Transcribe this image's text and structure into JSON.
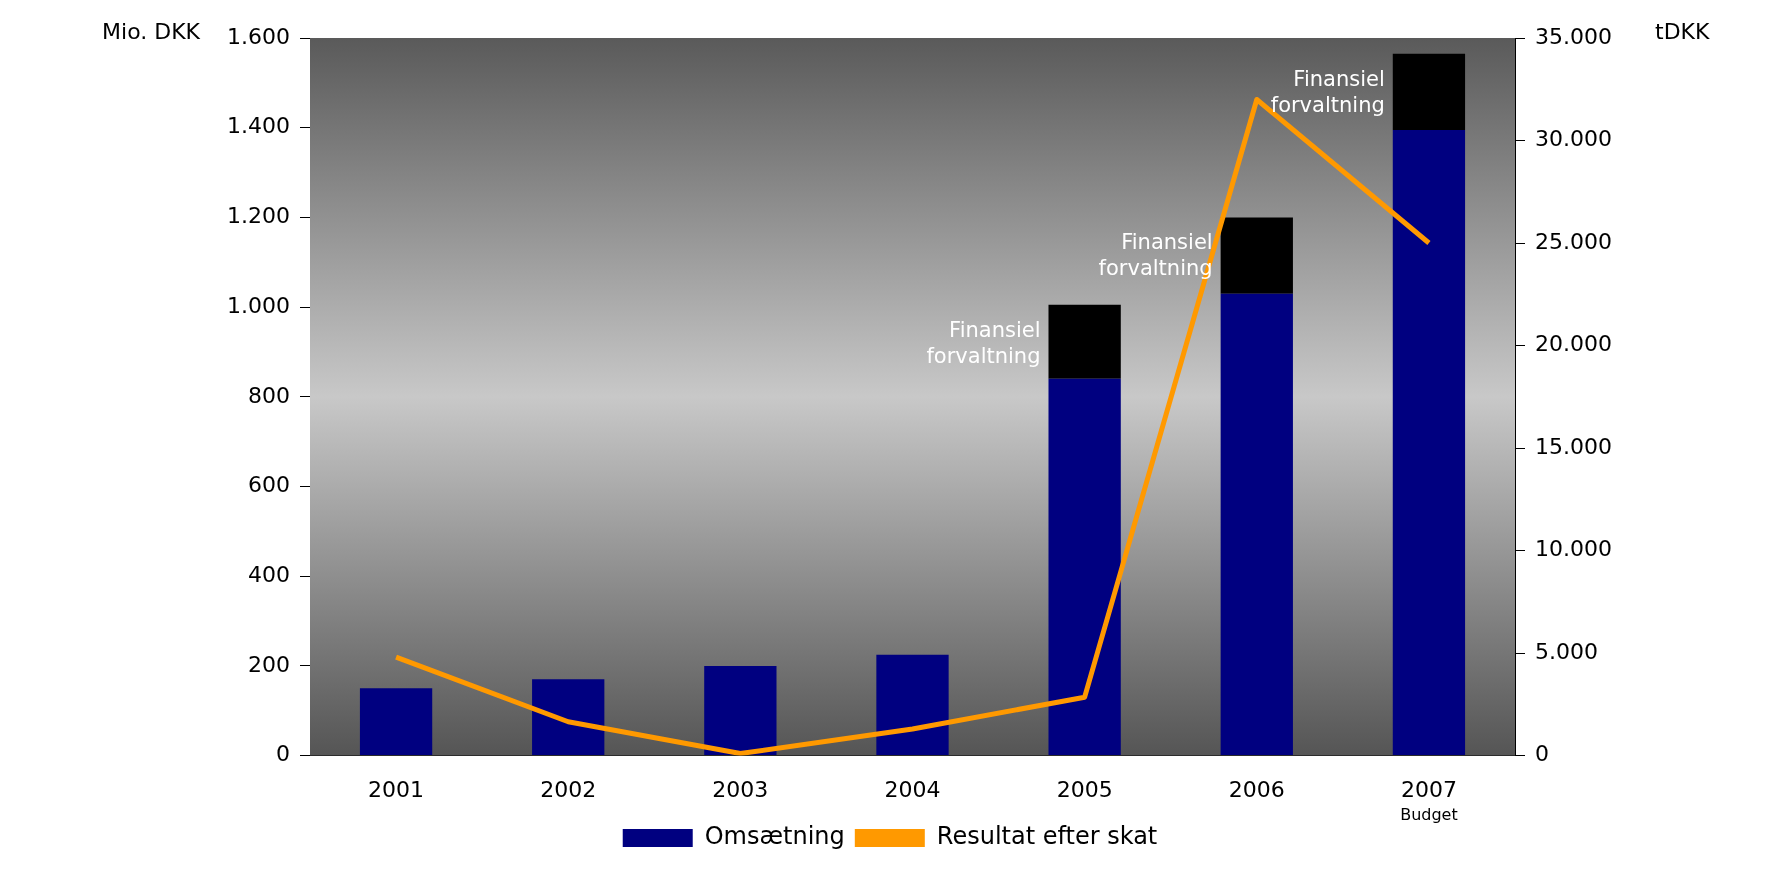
{
  "chart_data": {
    "type": "bar",
    "stacked": true,
    "ylabel": "Mio. DKK",
    "y2label": "tDKK",
    "categories": [
      "2001",
      "2002",
      "2003",
      "2004",
      "2005",
      "2006",
      "2007"
    ],
    "series": [
      {
        "name": "Omsætning",
        "color": "#000080",
        "values": [
          150,
          170,
          200,
          225,
          840,
          1030,
          1395
        ]
      },
      {
        "name": "Finansiel forvaltning",
        "color": "#000000",
        "values": [
          null,
          null,
          null,
          null,
          165,
          170,
          170
        ]
      },
      {
        "name": "Resultat efter skat",
        "type": "line",
        "axis": "y2",
        "color": "#ff9900",
        "values": [
          4800,
          1650,
          100,
          1300,
          2850,
          32000,
          25000
        ]
      }
    ],
    "ylim": [
      0,
      1600
    ],
    "yticks": [
      0,
      200,
      400,
      600,
      800,
      {
        "value": 1000,
        "label": "1.000"
      },
      {
        "value": 1200,
        "label": "1.200"
      },
      {
        "value": 1400,
        "label": "1.400"
      },
      {
        "value": 1600,
        "label": "1.600"
      }
    ],
    "y2lim": [
      0,
      35000
    ],
    "y2ticks": [
      0,
      {
        "value": 5000,
        "label": "5.000"
      },
      {
        "value": 10000,
        "label": "10.000"
      },
      {
        "value": 15000,
        "label": "15.000"
      },
      {
        "value": 20000,
        "label": "20.000"
      },
      {
        "value": 25000,
        "label": "25.000"
      },
      {
        "value": 30000,
        "label": "30.000"
      },
      {
        "value": 35000,
        "label": "35.000"
      }
    ],
    "annotations": [
      "Budget"
    ],
    "legend": "bottom",
    "grid": false,
    "marker": "none"
  }
}
